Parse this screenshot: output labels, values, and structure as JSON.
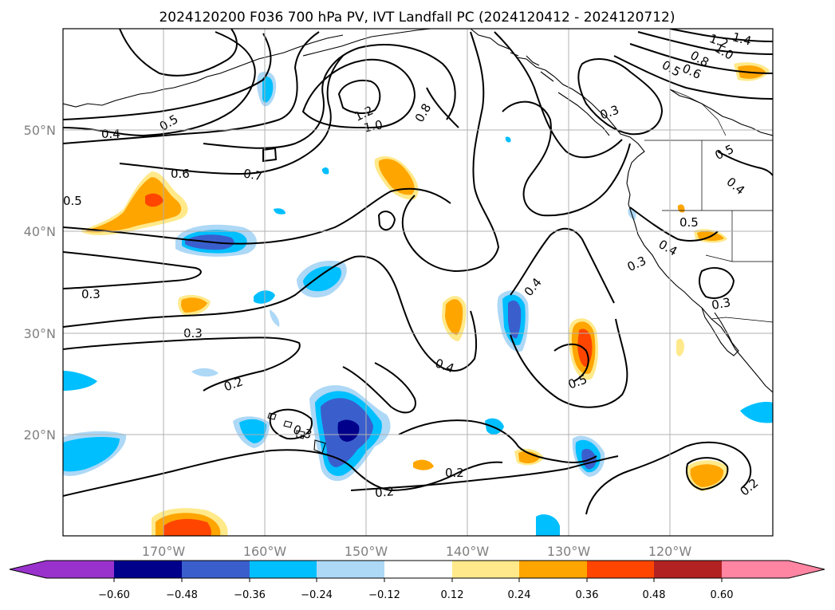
{
  "title": "2024120200 F036 700 hPa PV, IVT Landfall PC (2024120412 - 2024120712)",
  "lon_labels": [
    "170°W",
    "160°W",
    "150°W",
    "140°W",
    "130°W",
    "120°W"
  ],
  "lat_labels": [
    "50°N",
    "40°N",
    "30°N",
    "20°N"
  ],
  "colorbar": {
    "ticks": [
      "−0.60",
      "−0.48",
      "−0.36",
      "−0.24",
      "−0.12",
      "0.12",
      "0.24",
      "0.36",
      "0.48",
      "0.60"
    ],
    "colors": [
      "#9932cc",
      "#00008b",
      "#3a5fcd",
      "#00bfff",
      "#add8f6",
      "#ffffff",
      "#ffe98a",
      "#ffa500",
      "#ff4500",
      "#b22222",
      "#ff85a2"
    ]
  },
  "contour_labels": [
    "0.4",
    "0.5",
    "1.2",
    "1.0",
    "0.8",
    "1.2",
    "1.4",
    "1.0",
    "0.8",
    "0.5",
    "0.6",
    "0.3",
    "0.6",
    "0.7",
    "0.5",
    "0.5",
    "0.5",
    "0.4",
    "0.3",
    "0.3",
    "0.3",
    "0.3",
    "0.4",
    "0.4",
    "0.2",
    "0.4",
    "0.5",
    "0.3",
    "0.2",
    "0.2",
    "0.2"
  ]
}
